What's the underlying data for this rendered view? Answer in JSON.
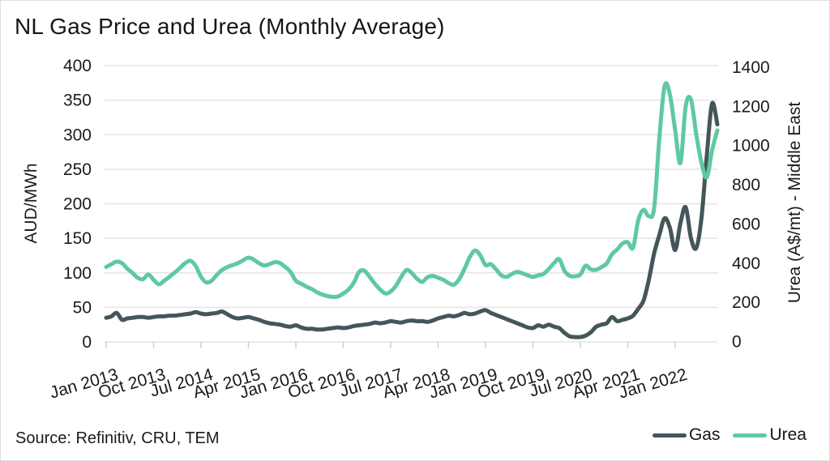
{
  "title": "NL Gas Price and Urea (Monthly Average)",
  "source_note": "Source: Refinitiv, CRU, TEM",
  "colors": {
    "gas": "#44565a",
    "urea": "#5fc9a1",
    "gridline": "#e4e4e4",
    "tick_mark": "#cfcfcf",
    "text": "#1b1b1b",
    "background": "#ffffff"
  },
  "legend": {
    "items": [
      {
        "label": "Gas",
        "color": "#44565a"
      },
      {
        "label": "Urea",
        "color": "#5fc9a1"
      }
    ],
    "position": "bottom-right"
  },
  "chart_data": {
    "type": "line",
    "title": "NL Gas Price and Urea (Monthly Average)",
    "x_start_month": "Jan 2013",
    "x_end_month": "Sep 2022",
    "x_frequency": "monthly",
    "x_tick_labels": [
      "Jan 2013",
      "Oct 2013",
      "Jul 2014",
      "Apr 2015",
      "Jan 2016",
      "Oct 2016",
      "Jul 2017",
      "Apr 2018",
      "Jan 2019",
      "Oct 2019",
      "Jul 2020",
      "Apr 2021",
      "Jan 2022"
    ],
    "x_tick_interval_months": 9,
    "grid": "horizontal-only",
    "left_axis": {
      "label": "AUD/MWh",
      "range": [
        0,
        400
      ],
      "ticks": [
        0,
        50,
        100,
        150,
        200,
        250,
        300,
        350,
        400
      ]
    },
    "right_axis": {
      "label": "Urea (A$/mt) - Middle East",
      "range": [
        0,
        1400
      ],
      "ticks": [
        0,
        200,
        400,
        600,
        800,
        1000,
        1200,
        1400
      ]
    },
    "series": [
      {
        "name": "Gas",
        "axis": "left",
        "color": "#44565a",
        "values": [
          35,
          37,
          42,
          32,
          34,
          35,
          36,
          36,
          35,
          36,
          37,
          37,
          38,
          38,
          39,
          40,
          41,
          43,
          41,
          40,
          41,
          42,
          44,
          40,
          36,
          34,
          35,
          36,
          34,
          32,
          29,
          27,
          26,
          25,
          23,
          22,
          24,
          21,
          19,
          19,
          18,
          18,
          19,
          20,
          21,
          20,
          21,
          23,
          24,
          25,
          26,
          28,
          27,
          28,
          30,
          29,
          28,
          30,
          31,
          30,
          30,
          29,
          31,
          34,
          36,
          38,
          37,
          39,
          42,
          40,
          41,
          44,
          46,
          42,
          39,
          36,
          33,
          30,
          27,
          24,
          21,
          20,
          24,
          22,
          25,
          22,
          20,
          13,
          8,
          7,
          7,
          9,
          14,
          22,
          25,
          27,
          36,
          30,
          32,
          34,
          38,
          48,
          60,
          90,
          128,
          155,
          179,
          165,
          133,
          172,
          195,
          150,
          136,
          180,
          270,
          345,
          315
        ]
      },
      {
        "name": "Urea",
        "axis": "right",
        "color": "#5fc9a1",
        "values": [
          380,
          395,
          408,
          400,
          372,
          350,
          325,
          318,
          342,
          315,
          292,
          310,
          330,
          352,
          375,
          400,
          412,
          385,
          330,
          302,
          310,
          340,
          365,
          380,
          390,
          400,
          415,
          428,
          418,
          400,
          388,
          395,
          405,
          400,
          380,
          355,
          310,
          295,
          280,
          268,
          252,
          240,
          232,
          228,
          230,
          245,
          265,
          300,
          355,
          362,
          330,
          295,
          265,
          245,
          255,
          285,
          330,
          365,
          350,
          320,
          305,
          328,
          335,
          325,
          315,
          298,
          290,
          318,
          370,
          430,
          464,
          440,
          390,
          395,
          368,
          338,
          330,
          345,
          355,
          348,
          338,
          330,
          338,
          345,
          370,
          400,
          420,
          360,
          335,
          333,
          342,
          387,
          368,
          366,
          380,
          398,
          445,
          470,
          500,
          507,
          478,
          620,
          672,
          640,
          680,
          1040,
          1305,
          1260,
          1078,
          912,
          1202,
          1235,
          1057,
          912,
          838,
          975,
          1078
        ]
      }
    ]
  }
}
